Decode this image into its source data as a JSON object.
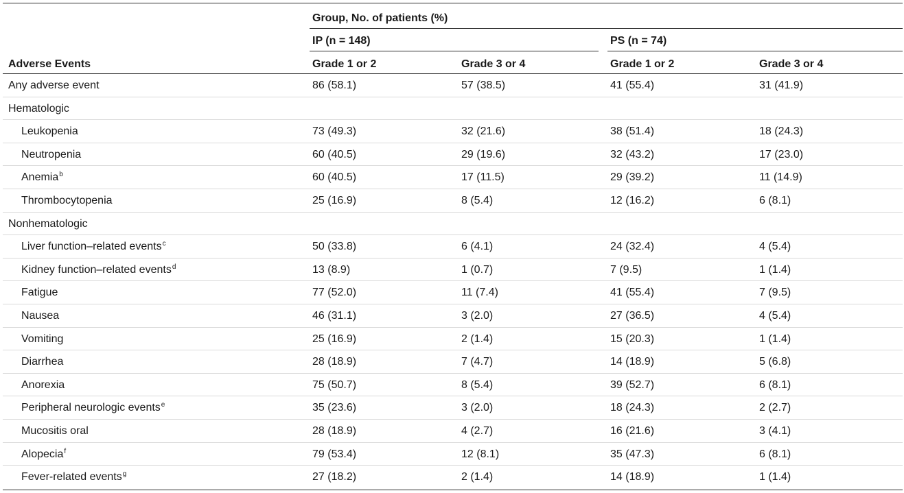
{
  "table": {
    "group_header": "Group, No. of patients (%)",
    "stub_header": "Adverse Events",
    "groups": [
      {
        "label": "IP (n = 148)"
      },
      {
        "label": "PS (n = 74)"
      }
    ],
    "grade_headers": [
      "Grade 1 or 2",
      "Grade 3 or 4",
      "Grade 1 or 2",
      "Grade 3 or 4"
    ],
    "rows": [
      {
        "label": "Any adverse event",
        "sup": "",
        "indent": false,
        "values": [
          "86 (58.1)",
          "57 (38.5)",
          "41 (55.4)",
          "31 (41.9)"
        ]
      },
      {
        "label": "Hematologic",
        "sup": "",
        "indent": false,
        "values": [
          "",
          "",
          "",
          ""
        ]
      },
      {
        "label": "Leukopenia",
        "sup": "",
        "indent": true,
        "values": [
          "73 (49.3)",
          "32 (21.6)",
          "38 (51.4)",
          "18 (24.3)"
        ]
      },
      {
        "label": "Neutropenia",
        "sup": "",
        "indent": true,
        "values": [
          "60 (40.5)",
          "29 (19.6)",
          "32 (43.2)",
          "17 (23.0)"
        ]
      },
      {
        "label": "Anemia",
        "sup": "b",
        "indent": true,
        "values": [
          "60 (40.5)",
          "17 (11.5)",
          "29 (39.2)",
          "11 (14.9)"
        ]
      },
      {
        "label": "Thrombocytopenia",
        "sup": "",
        "indent": true,
        "values": [
          "25 (16.9)",
          "8 (5.4)",
          "12 (16.2)",
          "6 (8.1)"
        ]
      },
      {
        "label": "Nonhematologic",
        "sup": "",
        "indent": false,
        "values": [
          "",
          "",
          "",
          ""
        ]
      },
      {
        "label": "Liver function–related events",
        "sup": "c",
        "indent": true,
        "values": [
          "50 (33.8)",
          "6 (4.1)",
          "24 (32.4)",
          "4 (5.4)"
        ]
      },
      {
        "label": "Kidney function–related events",
        "sup": "d",
        "indent": true,
        "values": [
          "13 (8.9)",
          "1 (0.7)",
          "7 (9.5)",
          "1 (1.4)"
        ]
      },
      {
        "label": "Fatigue",
        "sup": "",
        "indent": true,
        "values": [
          "77 (52.0)",
          "11 (7.4)",
          "41 (55.4)",
          "7 (9.5)"
        ]
      },
      {
        "label": "Nausea",
        "sup": "",
        "indent": true,
        "values": [
          "46 (31.1)",
          "3 (2.0)",
          "27 (36.5)",
          "4 (5.4)"
        ]
      },
      {
        "label": "Vomiting",
        "sup": "",
        "indent": true,
        "values": [
          "25 (16.9)",
          "2 (1.4)",
          "15 (20.3)",
          "1 (1.4)"
        ]
      },
      {
        "label": "Diarrhea",
        "sup": "",
        "indent": true,
        "values": [
          "28 (18.9)",
          "7 (4.7)",
          "14 (18.9)",
          "5 (6.8)"
        ]
      },
      {
        "label": "Anorexia",
        "sup": "",
        "indent": true,
        "values": [
          "75 (50.7)",
          "8 (5.4)",
          "39 (52.7)",
          "6 (8.1)"
        ]
      },
      {
        "label": "Peripheral neurologic events",
        "sup": "e",
        "indent": true,
        "values": [
          "35 (23.6)",
          "3 (2.0)",
          "18 (24.3)",
          "2 (2.7)"
        ]
      },
      {
        "label": "Mucositis oral",
        "sup": "",
        "indent": true,
        "values": [
          "28 (18.9)",
          "4 (2.7)",
          "16 (21.6)",
          "3 (4.1)"
        ]
      },
      {
        "label": "Alopecia",
        "sup": "f",
        "indent": true,
        "values": [
          "79 (53.4)",
          "12 (8.1)",
          "35 (47.3)",
          "6 (8.1)"
        ]
      },
      {
        "label": "Fever-related events",
        "sup": "g",
        "indent": true,
        "values": [
          "27 (18.2)",
          "2 (1.4)",
          "14 (18.9)",
          "1 (1.4)"
        ]
      }
    ]
  }
}
